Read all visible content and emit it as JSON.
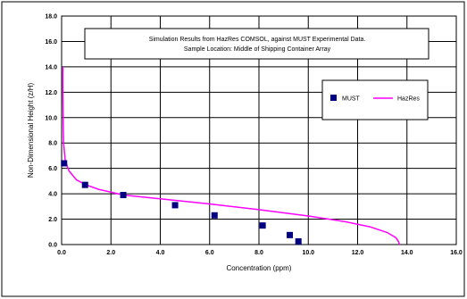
{
  "chart_data": {
    "type": "scatter",
    "title_lines": [
      "Simulation Results from HazRes COMSOL, against MUST Experimental Data.",
      "Sample Location: Middle of Shipping Container Array"
    ],
    "xlabel": "Concentration (ppm)",
    "ylabel": "Non-Dimensional Height (z/H)",
    "xlim": [
      0,
      16
    ],
    "ylim": [
      0,
      18
    ],
    "x_ticks": [
      "0.0",
      "2.0",
      "4.0",
      "6.0",
      "8.0",
      "10.0",
      "12.0",
      "14.0",
      "16.0"
    ],
    "y_ticks": [
      "0.0",
      "2.0",
      "4.0",
      "6.0",
      "8.0",
      "10.0",
      "12.0",
      "14.0",
      "16.0",
      "18.0"
    ],
    "grid": true,
    "legend_position": "right",
    "series": [
      {
        "name": "MUST",
        "kind": "markers",
        "marker": "square",
        "color": "#000080",
        "points": [
          [
            0.1,
            6.4
          ],
          [
            0.95,
            4.7
          ],
          [
            2.5,
            3.9
          ],
          [
            4.6,
            3.1
          ],
          [
            6.2,
            2.3
          ],
          [
            8.15,
            1.5
          ],
          [
            9.25,
            0.75
          ],
          [
            9.6,
            0.25
          ]
        ]
      },
      {
        "name": "HazRes",
        "kind": "line",
        "color": "#ff00ff",
        "points": [
          [
            0.05,
            14.0
          ],
          [
            0.05,
            12.0
          ],
          [
            0.06,
            10.0
          ],
          [
            0.08,
            8.0
          ],
          [
            0.15,
            6.6
          ],
          [
            0.3,
            5.8
          ],
          [
            0.6,
            5.1
          ],
          [
            1.0,
            4.7
          ],
          [
            1.5,
            4.35
          ],
          [
            2.5,
            3.9
          ],
          [
            4.0,
            3.6
          ],
          [
            6.0,
            3.2
          ],
          [
            8.0,
            2.75
          ],
          [
            10.0,
            2.25
          ],
          [
            11.5,
            1.8
          ],
          [
            12.5,
            1.4
          ],
          [
            13.2,
            0.95
          ],
          [
            13.55,
            0.55
          ],
          [
            13.65,
            0.25
          ],
          [
            13.7,
            0.0
          ]
        ]
      }
    ]
  }
}
